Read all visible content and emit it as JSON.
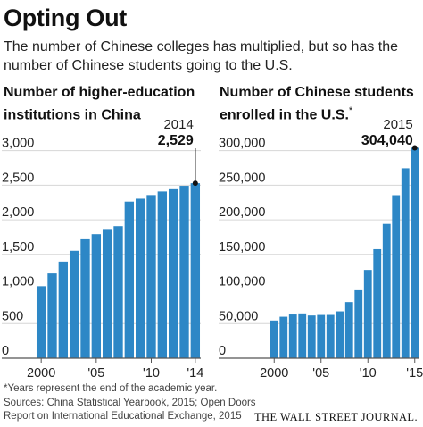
{
  "title": "Opting Out",
  "subtitle": "The number of Chinese colleges has multiplied, but so has the number of Chinese students going to the U.S.",
  "footnote": "*Years represent the end of the academic year.",
  "sources": "Sources: China Statistical Yearbook, 2015; Open Doors Report on International Educational Exchange, 2015",
  "credit": "THE WALL STREET JOURNAL.",
  "colors": {
    "bar": "#2d87c6",
    "grid": "#d6d6d6",
    "axis": "#555555",
    "text": "#222222"
  },
  "chart_data": [
    {
      "type": "bar",
      "title": "Number of higher-education institutions in China",
      "title_marker": "",
      "x": [
        2000,
        2001,
        2002,
        2003,
        2004,
        2005,
        2006,
        2007,
        2008,
        2009,
        2010,
        2011,
        2012,
        2013,
        2014
      ],
      "values": [
        1041,
        1225,
        1396,
        1552,
        1731,
        1792,
        1867,
        1908,
        2263,
        2305,
        2358,
        2409,
        2442,
        2491,
        2529
      ],
      "x_tick_labels": [
        "2000",
        "'05",
        "'10",
        "'14"
      ],
      "x_tick_positions": [
        2000,
        2005,
        2010,
        2014
      ],
      "y_ticks": [
        0,
        500,
        1000,
        1500,
        2000,
        2500,
        3000
      ],
      "y_tick_labels": [
        "0",
        "500",
        "1,000",
        "1,500",
        "2,000",
        "2,500",
        "3,000"
      ],
      "ylim": [
        0,
        3150
      ],
      "grid": true,
      "annotation": {
        "x": 2014,
        "value": 2529,
        "year_label": "2014",
        "value_label": "2,529"
      }
    },
    {
      "type": "bar",
      "title": "Number of Chinese students enrolled in the U.S.",
      "title_marker": "*",
      "x": [
        2000,
        2001,
        2002,
        2003,
        2004,
        2005,
        2006,
        2007,
        2008,
        2009,
        2010,
        2011,
        2012,
        2013,
        2014,
        2015
      ],
      "values": [
        54466,
        59939,
        63211,
        64757,
        61765,
        62523,
        62582,
        67723,
        81127,
        98235,
        127628,
        157558,
        194029,
        235597,
        274439,
        304040
      ],
      "x_tick_labels": [
        "2000",
        "'05",
        "'10",
        "'15"
      ],
      "x_tick_positions": [
        2000,
        2005,
        2010,
        2015
      ],
      "y_ticks": [
        0,
        50000,
        100000,
        150000,
        200000,
        250000,
        300000
      ],
      "y_tick_labels": [
        "0",
        "50,000",
        "100,000",
        "150,000",
        "200,000",
        "250,000",
        "300,000"
      ],
      "ylim": [
        0,
        315000
      ],
      "grid": true,
      "annotation": {
        "x": 2015,
        "value": 304040,
        "year_label": "2015",
        "value_label": "304,040"
      }
    }
  ]
}
